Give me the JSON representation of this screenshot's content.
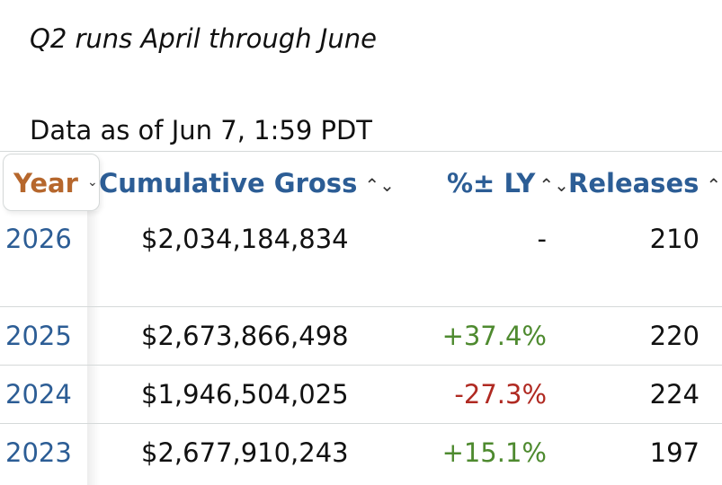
{
  "note": "Q2 runs April through June",
  "as_of": "Data as of Jun 7, 1:59 PDT",
  "table": {
    "headers": {
      "year": "Year",
      "gross": "Cumulative Gross",
      "pct": "%± LY",
      "releases": "Releases"
    },
    "rows": [
      {
        "year": "2026",
        "gross": "$2,034,184,834",
        "pct": "-",
        "releases": "210"
      },
      {
        "year": "2025",
        "gross": "$2,673,866,498",
        "pct": "+37.4%",
        "releases": "220"
      },
      {
        "year": "2024",
        "gross": "$1,946,504,025",
        "pct": "-27.3%",
        "releases": "224"
      },
      {
        "year": "2023",
        "gross": "$2,677,910,243",
        "pct": "+15.1%",
        "releases": "197"
      }
    ]
  },
  "colors": {
    "link": "#2c5d95",
    "active_sort": "#b6672d",
    "positive": "#4e8a2f",
    "negative": "#b02a22"
  }
}
